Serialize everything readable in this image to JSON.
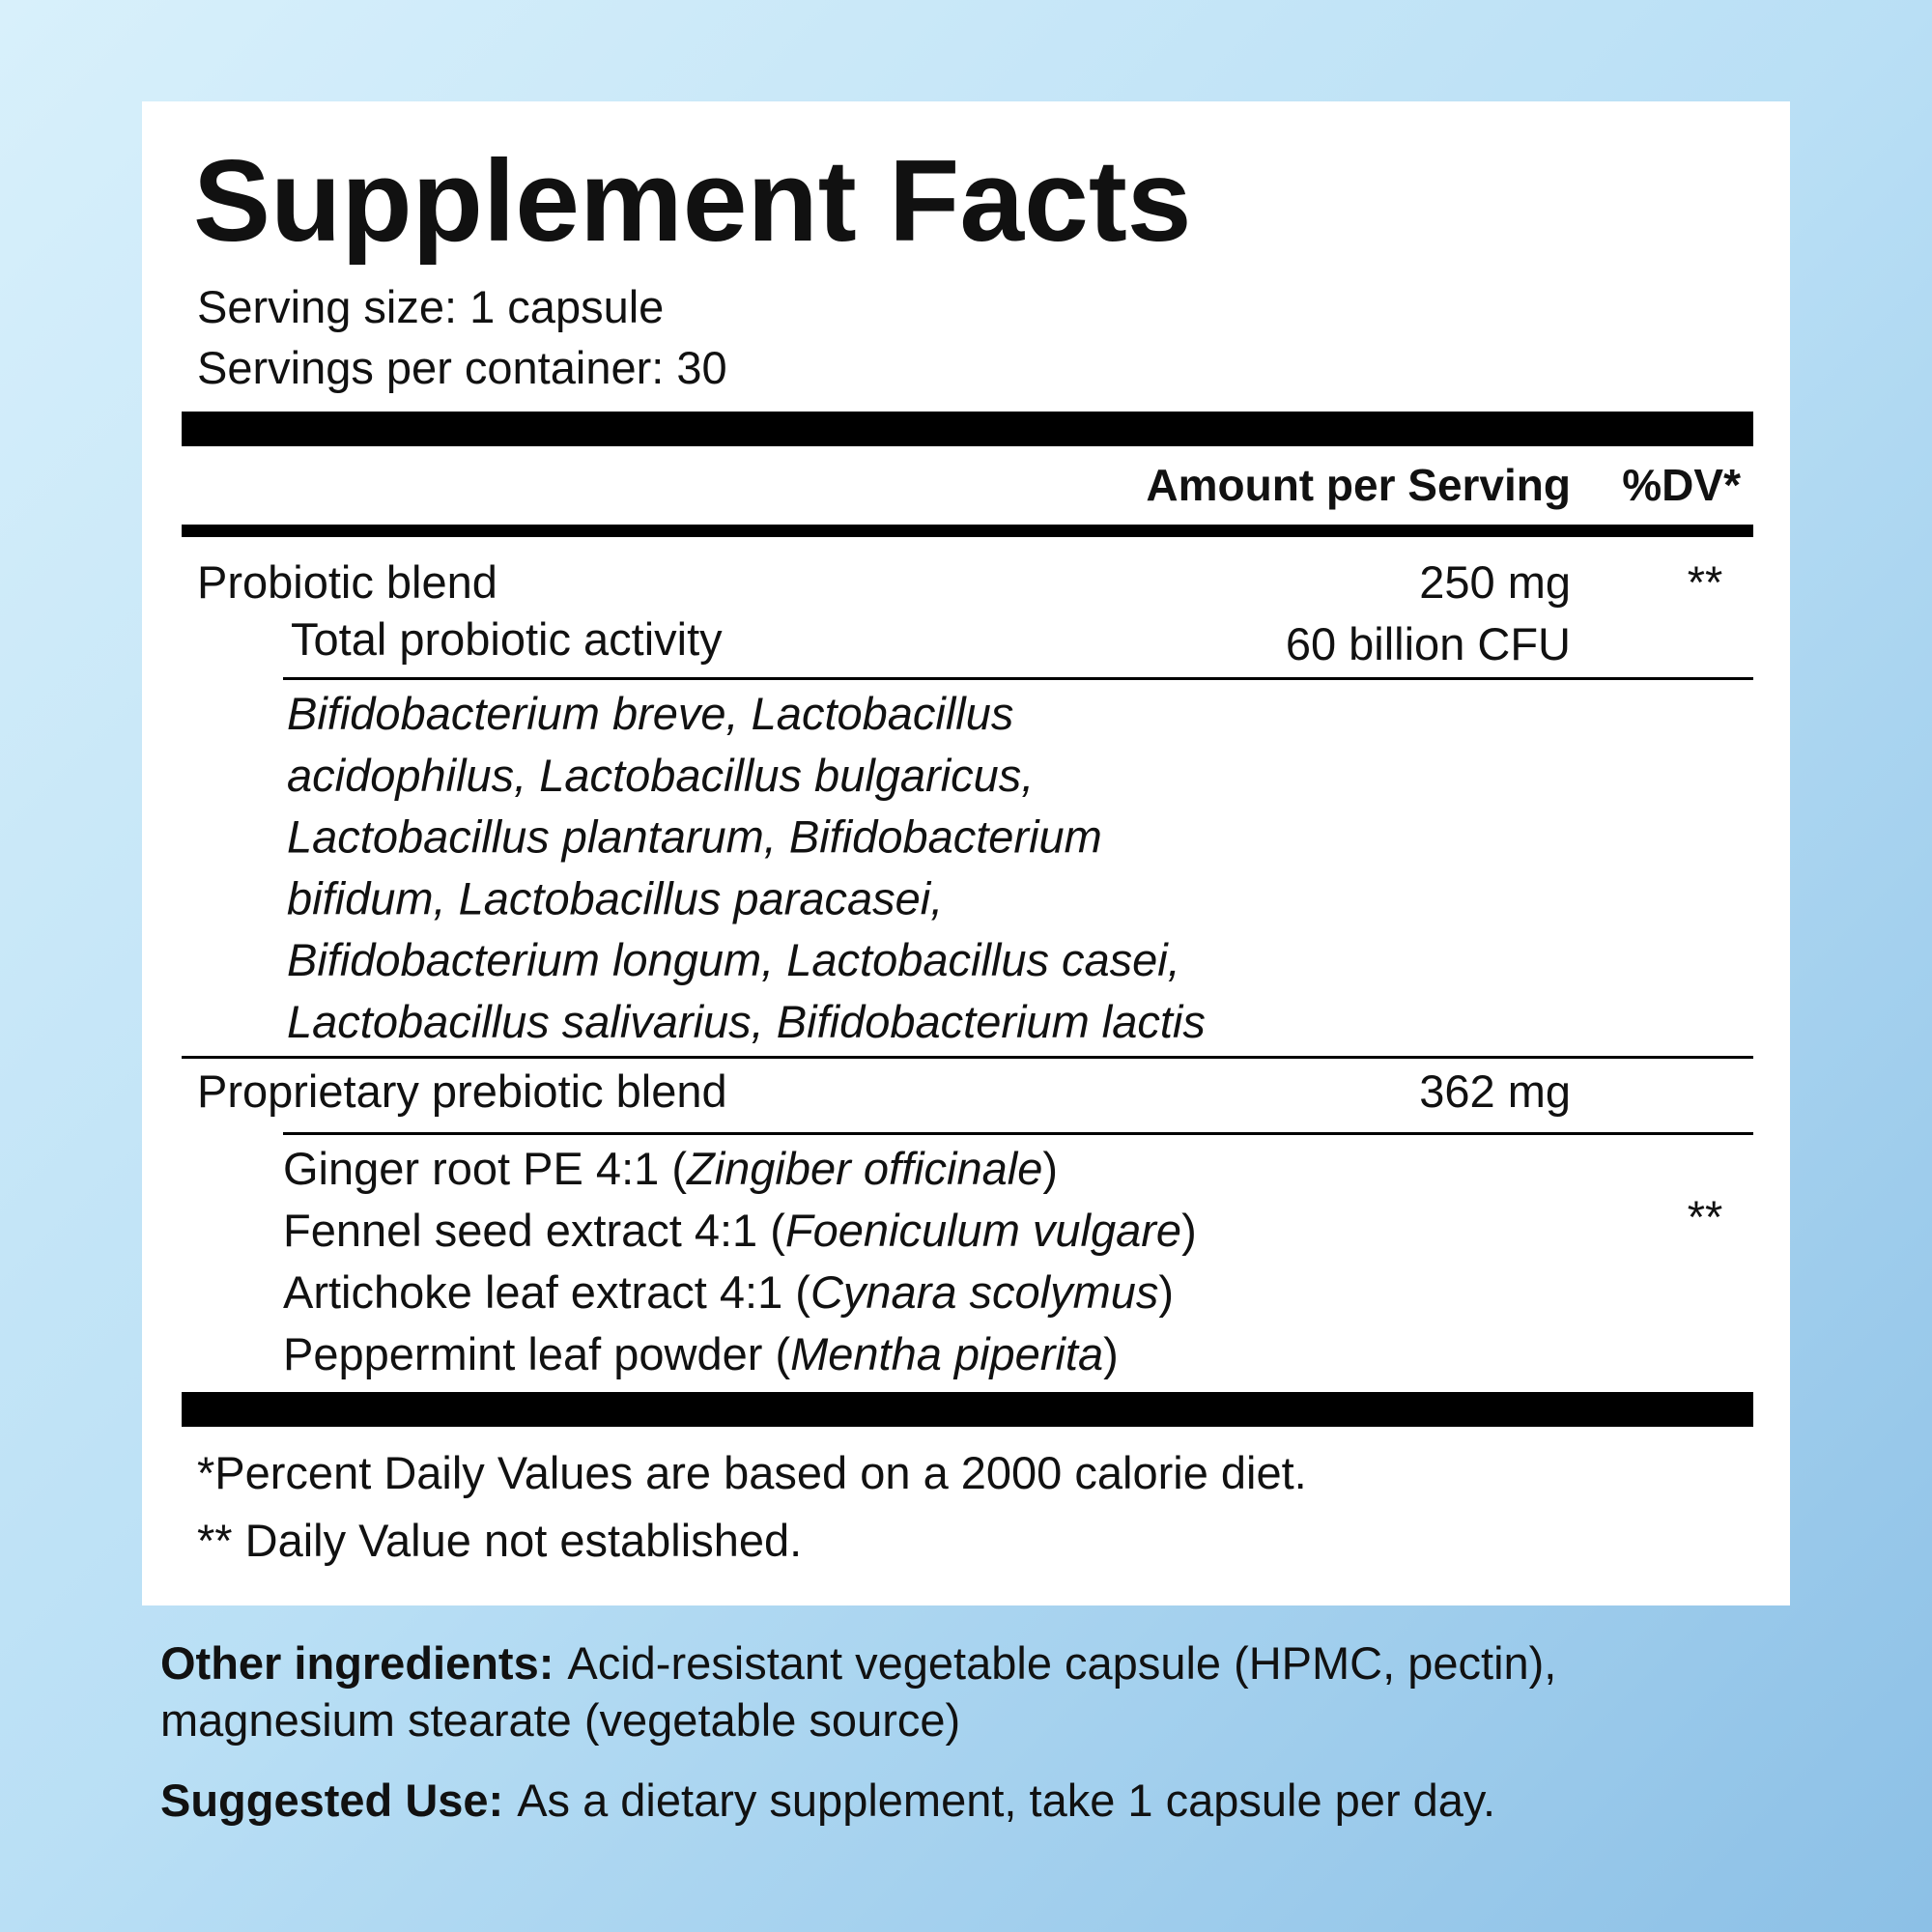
{
  "header": {
    "title": "Supplement Facts",
    "serving_size": "Serving size: 1 capsule",
    "servings_per_container": "Servings per container: 30"
  },
  "table": {
    "columns": [
      "Amount per Serving",
      "%DV*"
    ],
    "probiotic": {
      "name": "Probiotic blend",
      "amount": "250 mg",
      "dv": "**",
      "activity": {
        "name": "Total probiotic activity",
        "amount": "60 billion CFU"
      },
      "strains": [
        "Bifidobacterium breve, Lactobacillus",
        "acidophilus, Lactobacillus bulgaricus,",
        "Lactobacillus plantarum, Bifidobacterium",
        "bifidum, Lactobacillus paracasei,",
        "Bifidobacterium longum, Lactobacillus casei,",
        "Lactobacillus salivarius, Bifidobacterium lactis"
      ]
    },
    "prebiotic": {
      "name": "Proprietary prebiotic blend",
      "amount": "362 mg",
      "dv": "**",
      "ingredients": [
        {
          "name": "Ginger root PE 4:1 (",
          "latin": "Zingiber officinale",
          "close": ")"
        },
        {
          "name": "Fennel seed extract 4:1 (",
          "latin": "Foeniculum vulgare",
          "close": ")"
        },
        {
          "name": "Artichoke leaf extract 4:1 (",
          "latin": "Cynara scolymus",
          "close": ")"
        },
        {
          "name": "Peppermint leaf powder (",
          "latin": "Mentha piperita",
          "close": ")"
        }
      ]
    }
  },
  "footnotes": [
    "*Percent Daily Values are based on a 2000 calorie diet.",
    "** Daily Value not established."
  ],
  "other_ingredients": {
    "label": "Other ingredients:",
    "lines": [
      "Acid-resistant vegetable capsule (HPMC, pectin),",
      "magnesium stearate (vegetable source)"
    ]
  },
  "suggested_use": {
    "label": "Suggested Use:",
    "text": "As a dietary supplement, take 1 capsule per day."
  }
}
